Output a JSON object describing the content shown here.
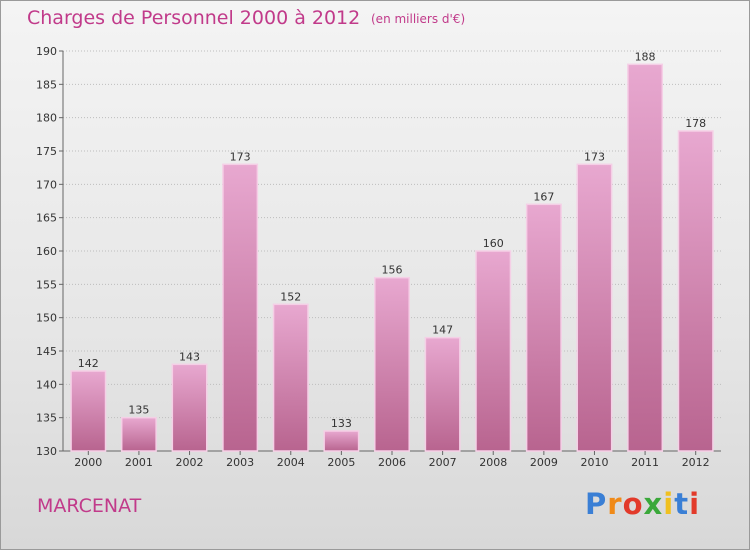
{
  "header": {
    "title": "Charges de Personnel 2000 à 2012",
    "subtitle": "(en milliers d'€)"
  },
  "footer": {
    "commune": "MARCENAT",
    "logo_letters": [
      "P",
      "r",
      "o",
      "x",
      "i",
      "t",
      "i"
    ],
    "logo_colors": [
      "#3a7fd5",
      "#f08a18",
      "#e23a2a",
      "#3aa83a",
      "#f0c020",
      "#3a7fd5",
      "#e23a2a"
    ]
  },
  "colors": {
    "bar_light": "#e8a8d0",
    "bar_dark": "#b8648f",
    "bar_edge": "#f5cfe6",
    "grid": "#bdbdbd",
    "accent": "#c13a8a"
  },
  "chart_data": {
    "type": "bar",
    "title": "Charges de Personnel 2000 à 2012",
    "subtitle": "(en milliers d'€)",
    "categories": [
      "2000",
      "2001",
      "2002",
      "2003",
      "2004",
      "2005",
      "2006",
      "2007",
      "2008",
      "2009",
      "2010",
      "2011",
      "2012"
    ],
    "values": [
      142,
      135,
      143,
      173,
      152,
      133,
      156,
      147,
      160,
      167,
      173,
      188,
      178
    ],
    "ylim": [
      130,
      190
    ],
    "yticks": [
      130,
      135,
      140,
      145,
      150,
      155,
      160,
      165,
      170,
      175,
      180,
      185,
      190
    ],
    "grid": true
  }
}
